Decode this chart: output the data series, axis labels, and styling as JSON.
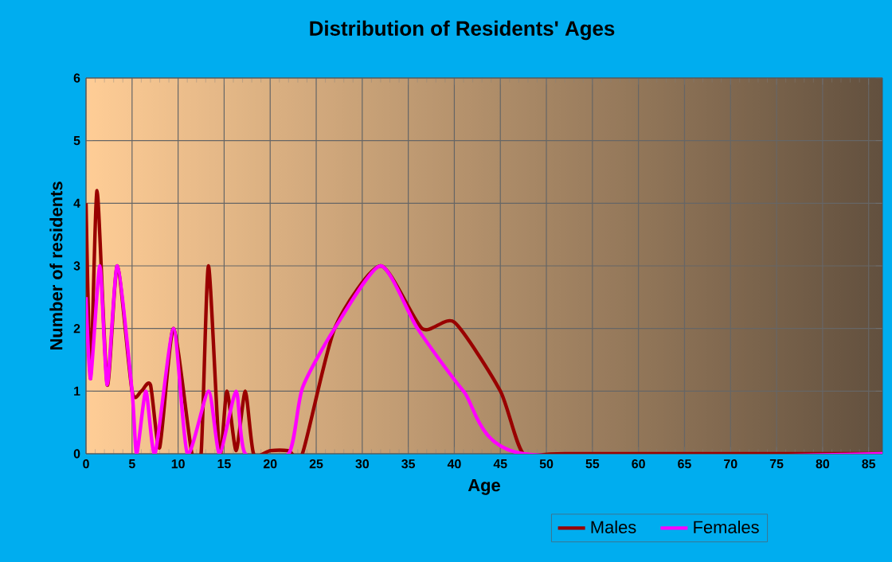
{
  "chart_data": {
    "type": "line",
    "title": "Distribution of Residents' Ages",
    "xlabel": "Age",
    "ylabel": "Number of residents",
    "xlim": [
      0,
      86.5
    ],
    "ylim": [
      0,
      6
    ],
    "xticks": [
      0,
      5,
      10,
      15,
      20,
      25,
      30,
      35,
      40,
      45,
      50,
      55,
      60,
      65,
      70,
      75,
      80,
      85
    ],
    "yticks": [
      0,
      1,
      2,
      3,
      4,
      5,
      6
    ],
    "grid": true,
    "legend": "bottom",
    "line_style": "solid",
    "marker": "none",
    "series": [
      {
        "name": "Males",
        "color": "#990000",
        "x": [
          0,
          0.5,
          1.2,
          2.3,
          3.4,
          5,
          6,
          7,
          8,
          9.5,
          11.5,
          12.5,
          13.3,
          14.5,
          15.3,
          16.3,
          17.3,
          18.2,
          20,
          22,
          23.5,
          27,
          32,
          36.5,
          40,
          45,
          47.5,
          52,
          86.5
        ],
        "values": [
          4,
          1.2,
          4.2,
          1.1,
          3,
          1,
          1,
          1.1,
          0.1,
          2,
          0,
          0,
          3,
          0,
          1,
          0.05,
          1,
          0,
          0.05,
          0.05,
          0,
          2,
          3,
          2,
          2.1,
          1,
          0,
          0,
          0
        ]
      },
      {
        "name": "Females",
        "color": "#ff00ff",
        "x": [
          0,
          0.5,
          1.5,
          2.3,
          3.4,
          5,
          5.5,
          6.5,
          7.5,
          9.5,
          11,
          13.3,
          14.5,
          16.3,
          17.3,
          22,
          23.5,
          27,
          32,
          36,
          41,
          47.5,
          86.5
        ],
        "values": [
          2.5,
          1.2,
          3,
          1.1,
          3,
          1,
          0,
          1,
          0,
          2,
          0,
          1,
          0,
          1,
          0,
          0,
          1.05,
          2,
          3,
          2,
          1,
          0,
          0
        ]
      }
    ]
  }
}
